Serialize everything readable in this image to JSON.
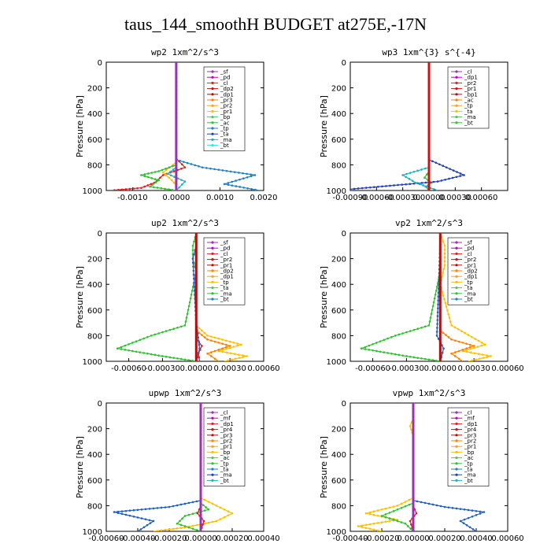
{
  "page": {
    "title": "taus_144_smoothH  BUDGET at275E,-17N"
  },
  "chart_data": [
    {
      "type": "line",
      "title": "wp2  1xm^2/s^3",
      "ylabel": "Pressure [hPa]",
      "ylim": [
        1000,
        0
      ],
      "yticks": [
        0,
        200,
        400,
        600,
        800,
        1000
      ],
      "xlim": [
        -0.0016,
        0.002
      ],
      "xticks": [
        -0.001,
        0.0,
        0.001,
        0.002
      ],
      "xtick_labels": [
        "-0.0010",
        "0.0000",
        "0.0010",
        "0.0020"
      ],
      "legend": [
        "_sf",
        "_pd",
        "_cl",
        "_dp2",
        "_dp1",
        "_pr3",
        "_pr2",
        "_pr1",
        "_bp",
        "_ac",
        "_tp",
        "_ta",
        "_ma",
        "_bt"
      ],
      "series": [
        {
          "name": "_pd",
          "color": "#9b30b0",
          "x": [
            0,
            0,
            0,
            0,
            0,
            0,
            0,
            0
          ],
          "y": [
            0,
            200,
            400,
            600,
            750,
            850,
            950,
            1000
          ]
        },
        {
          "name": "_cl",
          "color": "#e02020",
          "x": [
            0,
            0,
            0.0002,
            -0.0003,
            -0.0005,
            -0.0008,
            -0.0015
          ],
          "y": [
            0,
            750,
            820,
            880,
            940,
            980,
            1000
          ]
        },
        {
          "name": "_pr1",
          "color": "#ffc000",
          "x": [
            0,
            0,
            -0.0003,
            -0.0001,
            0,
            0
          ],
          "y": [
            0,
            780,
            860,
            920,
            960,
            1000
          ]
        },
        {
          "name": "_ac",
          "color": "#30c030",
          "x": [
            0,
            0,
            -0.0004,
            -0.0008,
            -0.0004,
            -0.0006,
            0
          ],
          "y": [
            0,
            800,
            850,
            880,
            920,
            970,
            1000
          ]
        },
        {
          "name": "_tp",
          "color": "#2080c0",
          "x": [
            0,
            0,
            0.0006,
            0.0018,
            0.0011,
            0.0019
          ],
          "y": [
            0,
            760,
            820,
            880,
            950,
            1000
          ]
        },
        {
          "name": "_ma",
          "color": "#20b0c0",
          "x": [
            0,
            0,
            -0.0002,
            0.0002,
            0
          ],
          "y": [
            0,
            820,
            870,
            930,
            1000
          ]
        }
      ]
    },
    {
      "type": "line",
      "title": "wp3  1xm^{3} s^{-4}",
      "ylabel": "Pressure [hPa]",
      "ylim": [
        1000,
        0
      ],
      "yticks": [
        0,
        200,
        400,
        600,
        800,
        1000
      ],
      "xlim": [
        -0.0009,
        0.0009
      ],
      "xticks": [
        -0.0009,
        -0.0006,
        -0.0003,
        0.0,
        0.0003,
        0.0006
      ],
      "xtick_labels": [
        "-0.00090",
        "-0.00060",
        "-0.00030",
        "0.00000",
        "0.00030",
        "0.00060"
      ],
      "legend": [
        "_cl",
        "_dp1",
        "_pr2",
        "_pr1",
        "_bp1",
        "_ac",
        "_tp",
        "_ta",
        "_ma",
        "_bt"
      ],
      "series": [
        {
          "name": "_dp1",
          "color": "#d01010",
          "x": [
            0,
            0,
            0,
            0,
            0,
            0,
            0
          ],
          "y": [
            0,
            200,
            400,
            600,
            800,
            900,
            1000
          ]
        },
        {
          "name": "_ac",
          "color": "#30c030",
          "x": [
            0,
            0,
            -5e-05,
            3e-05,
            -4e-05,
            0
          ],
          "y": [
            0,
            850,
            900,
            940,
            970,
            1000
          ]
        },
        {
          "name": "_tp",
          "color": "#2040c0",
          "x": [
            0,
            0,
            0.0002,
            0.0004,
            0.0001,
            -0.0009
          ],
          "y": [
            0,
            760,
            820,
            880,
            930,
            990
          ]
        },
        {
          "name": "_ma",
          "color": "#20b0c0",
          "x": [
            0,
            0,
            -0.0003,
            -0.00015,
            0.0001
          ],
          "y": [
            0,
            820,
            880,
            940,
            1000
          ]
        }
      ]
    },
    {
      "type": "line",
      "title": "up2  1xm^2/s^3",
      "ylabel": "Pressure [hPa]",
      "ylim": [
        1000,
        0
      ],
      "yticks": [
        0,
        200,
        400,
        600,
        800,
        1000
      ],
      "xlim": [
        -0.0008,
        0.0006
      ],
      "xticks": [
        -0.0006,
        -0.0003,
        0.0,
        0.0003,
        0.0006
      ],
      "xtick_labels": [
        "-0.00060",
        "-0.00030",
        "0.00000",
        "0.00030",
        "0.00060"
      ],
      "legend": [
        "_sf",
        "_pd",
        "_cl",
        "_pr2",
        "_pr1",
        "_dp2",
        "_dp1",
        "_tp",
        "_ta",
        "_ma",
        "_bt"
      ],
      "series": [
        {
          "name": "_sf",
          "color": "#b01010",
          "x": [
            0,
            0,
            0,
            0,
            0,
            0
          ],
          "y": [
            0,
            200,
            400,
            600,
            800,
            1000
          ]
        },
        {
          "name": "_dp2",
          "color": "#30c030",
          "x": [
            0,
            -3e-05,
            -3e-05,
            0,
            -0.0001,
            -0.0004,
            -0.0007,
            -0.0003,
            0
          ],
          "y": [
            0,
            100,
            200,
            300,
            720,
            800,
            900,
            960,
            1000
          ]
        },
        {
          "name": "_pr1",
          "color": "#ffc000",
          "x": [
            0,
            0,
            0.0001,
            0.0004,
            0.0002,
            0.00045,
            0.00025
          ],
          "y": [
            0,
            720,
            800,
            870,
            920,
            960,
            1000
          ]
        },
        {
          "name": "_pr2",
          "color": "#ff8000",
          "x": [
            0,
            0,
            0.0001,
            0.0003,
            0.0001,
            0.0002
          ],
          "y": [
            0,
            760,
            830,
            880,
            940,
            1000
          ]
        },
        {
          "name": "_cl",
          "color": "#e02020",
          "x": [
            0,
            0,
            5e-05,
            2e-05,
            3e-05
          ],
          "y": [
            0,
            820,
            880,
            940,
            1000
          ]
        },
        {
          "name": "_tp",
          "color": "#2060c0",
          "x": [
            0,
            0,
            -3e-05,
            0,
            3e-05,
            0
          ],
          "y": [
            0,
            100,
            200,
            700,
            900,
            1000
          ]
        }
      ]
    },
    {
      "type": "line",
      "title": "vp2  1xm^2/s^3",
      "ylabel": "Pressure [hPa]",
      "ylim": [
        1000,
        0
      ],
      "yticks": [
        0,
        200,
        400,
        600,
        800,
        1000
      ],
      "xlim": [
        -0.0008,
        0.0006
      ],
      "xticks": [
        -0.0006,
        -0.0003,
        0.0,
        0.0003,
        0.0006
      ],
      "xtick_labels": [
        "-0.00060",
        "-0.00030",
        "0.00000",
        "0.00030",
        "0.00060"
      ],
      "legend": [
        "_sf",
        "_pd",
        "_cl",
        "_pr2",
        "_pr1",
        "_dp2",
        "_dp1",
        "_tp",
        "_ta",
        "_ma",
        "_bt"
      ],
      "series": [
        {
          "name": "_sf",
          "color": "#b01010",
          "x": [
            0,
            0,
            0,
            0,
            0,
            0
          ],
          "y": [
            0,
            200,
            400,
            600,
            800,
            1000
          ]
        },
        {
          "name": "_dp2",
          "color": "#30c030",
          "x": [
            0,
            0,
            -0.0001,
            -0.0004,
            -0.0007,
            -0.0003,
            0
          ],
          "y": [
            0,
            300,
            720,
            800,
            900,
            960,
            1000
          ]
        },
        {
          "name": "_pr1",
          "color": "#ffc000",
          "x": [
            0,
            4e-05,
            4e-05,
            0,
            0.0001,
            0.0004,
            0.0002,
            0.00045,
            0.00025
          ],
          "y": [
            0,
            100,
            250,
            400,
            720,
            870,
            920,
            960,
            1000
          ]
        },
        {
          "name": "_pr2",
          "color": "#ff8000",
          "x": [
            0,
            0,
            0.0001,
            0.0003,
            0.0001,
            0.0002
          ],
          "y": [
            0,
            760,
            830,
            880,
            940,
            1000
          ]
        },
        {
          "name": "_tp",
          "color": "#2060c0",
          "x": [
            0,
            0,
            -3e-05,
            3e-05,
            0
          ],
          "y": [
            0,
            100,
            800,
            900,
            1000
          ]
        }
      ]
    },
    {
      "type": "line",
      "title": "upwp  1xm^2/s^3",
      "ylabel": "Pressure [hPa]",
      "ylim": [
        1000,
        0
      ],
      "yticks": [
        0,
        200,
        400,
        600,
        800,
        1000
      ],
      "xlim": [
        -0.0006,
        0.0004
      ],
      "xticks": [
        -0.0006,
        -0.0004,
        -0.0002,
        0.0,
        0.0002,
        0.0004
      ],
      "xtick_labels": [
        "-0.00060",
        "-0.00040",
        "-0.00020",
        "0.00000",
        "0.00020",
        "0.00040"
      ],
      "legend": [
        "_cl",
        "_mf",
        "_dp1",
        "_pr4",
        "_pr3",
        "_pr2",
        "_pr1",
        "_bp",
        "_ac",
        "_tp",
        "_ta",
        "_ma",
        "_bt"
      ],
      "series": [
        {
          "name": "_mf",
          "color": "#9b30b0",
          "x": [
            0,
            0,
            0,
            0,
            0,
            0
          ],
          "y": [
            0,
            200,
            400,
            600,
            800,
            1000
          ]
        },
        {
          "name": "_pr1",
          "color": "#ffc000",
          "x": [
            0,
            0,
            0.0001,
            0.0002,
            0.0001,
            -0.0001,
            -0.0003
          ],
          "y": [
            0,
            740,
            800,
            860,
            920,
            970,
            1000
          ]
        },
        {
          "name": "_ac",
          "color": "#30c030",
          "x": [
            0,
            0,
            5e-05,
            -0.0001,
            -0.00015,
            0
          ],
          "y": [
            0,
            780,
            830,
            880,
            940,
            1000
          ]
        },
        {
          "name": "_tp",
          "color": "#2060c0",
          "x": [
            0,
            0,
            -0.0002,
            -0.00055,
            -0.0003,
            -0.0004
          ],
          "y": [
            0,
            760,
            810,
            850,
            920,
            1000
          ]
        },
        {
          "name": "_dp1",
          "color": "#e02020",
          "x": [
            0,
            0,
            -2e-05,
            2e-05,
            0
          ],
          "y": [
            0,
            800,
            860,
            920,
            1000
          ]
        }
      ]
    },
    {
      "type": "line",
      "title": "vpwp  1xm^2/s^3",
      "ylabel": "Pressure [hPa]",
      "ylim": [
        1000,
        0
      ],
      "yticks": [
        0,
        200,
        400,
        600,
        800,
        1000
      ],
      "xlim": [
        -0.0004,
        0.0006
      ],
      "xticks": [
        -0.0004,
        -0.0002,
        0.0,
        0.0002,
        0.0004,
        0.0006
      ],
      "xtick_labels": [
        "-0.00040",
        "-0.00020",
        "0.00000",
        "0.00020",
        "0.00040",
        "0.00060"
      ],
      "legend": [
        "_cl",
        "_mf",
        "_dp1",
        "_pr4",
        "_pr3",
        "_pr2",
        "_pr1",
        "_bp",
        "_ac",
        "_tp",
        "_ta",
        "_ma",
        "_bt"
      ],
      "series": [
        {
          "name": "_mf",
          "color": "#9b30b0",
          "x": [
            0,
            0,
            0,
            0,
            0,
            0
          ],
          "y": [
            0,
            200,
            400,
            600,
            800,
            1000
          ]
        },
        {
          "name": "_pr1",
          "color": "#ffc000",
          "x": [
            0,
            0,
            -2e-05,
            0,
            0,
            -0.0001,
            -0.0003,
            -0.0001,
            -0.00035,
            -0.0002
          ],
          "y": [
            0,
            120,
            180,
            260,
            740,
            800,
            860,
            910,
            960,
            1000
          ]
        },
        {
          "name": "_ac",
          "color": "#30c030",
          "x": [
            0,
            0,
            -0.0001,
            -0.0002,
            -5e-05,
            0
          ],
          "y": [
            0,
            780,
            830,
            880,
            940,
            1000
          ]
        },
        {
          "name": "_tp",
          "color": "#2060c0",
          "x": [
            0,
            0,
            0.0002,
            0.00045,
            0.0003,
            0.0004
          ],
          "y": [
            0,
            760,
            810,
            850,
            920,
            1000
          ]
        },
        {
          "name": "_dp1",
          "color": "#e02020",
          "x": [
            0,
            0,
            2e-05,
            -2e-05,
            0
          ],
          "y": [
            0,
            800,
            860,
            920,
            1000
          ]
        }
      ]
    }
  ]
}
